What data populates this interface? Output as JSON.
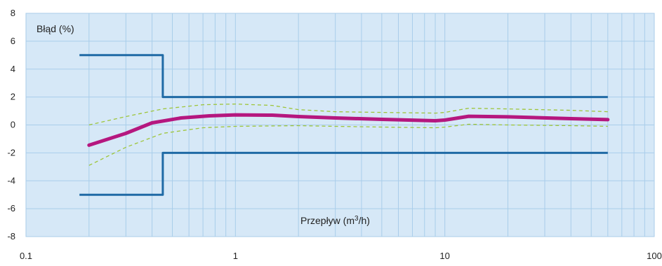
{
  "chart_data": {
    "type": "line",
    "x_scale": "log",
    "y_scale": "linear",
    "xlim": [
      0.1,
      100
    ],
    "ylim": [
      -8,
      8
    ],
    "x_ticks": [
      {
        "value": 0.1,
        "label": "0.1"
      },
      {
        "value": 1,
        "label": "1"
      },
      {
        "value": 10,
        "label": "10"
      },
      {
        "value": 100,
        "label": "100"
      }
    ],
    "y_ticks": [
      {
        "value": 8,
        "label": "8"
      },
      {
        "value": 6,
        "label": "6"
      },
      {
        "value": 4,
        "label": "4"
      },
      {
        "value": 2,
        "label": "2"
      },
      {
        "value": 0,
        "label": "0"
      },
      {
        "value": -2,
        "label": "-2"
      },
      {
        "value": -4,
        "label": "-4"
      },
      {
        "value": -6,
        "label": "-6"
      },
      {
        "value": -8,
        "label": "-8"
      }
    ],
    "ylabel": "Błąd (%)",
    "xlabel_base": "Przepływ (m",
    "xlabel_sup": "3",
    "xlabel_tail": "/h)",
    "grid": true,
    "colors": {
      "plot_bg": "#d6e8f7",
      "grid": "#a9cdea",
      "limits": "#1f6aa5",
      "curve": "#b5177f",
      "band": "#9ec53a"
    },
    "series": [
      {
        "role": "upper-limit",
        "style": "solid",
        "points": [
          [
            0.18,
            5
          ],
          [
            0.45,
            5
          ],
          [
            0.45,
            2
          ],
          [
            60,
            2
          ]
        ]
      },
      {
        "role": "lower-limit",
        "style": "solid",
        "points": [
          [
            0.18,
            -5
          ],
          [
            0.45,
            -5
          ],
          [
            0.45,
            -2
          ],
          [
            60,
            -2
          ]
        ]
      },
      {
        "role": "error-curve",
        "style": "solid",
        "points": [
          [
            0.2,
            -1.45
          ],
          [
            0.3,
            -0.6
          ],
          [
            0.4,
            0.15
          ],
          [
            0.55,
            0.5
          ],
          [
            0.75,
            0.65
          ],
          [
            1,
            0.72
          ],
          [
            1.5,
            0.7
          ],
          [
            2,
            0.6
          ],
          [
            3,
            0.5
          ],
          [
            5,
            0.4
          ],
          [
            9,
            0.3
          ],
          [
            10,
            0.35
          ],
          [
            13,
            0.62
          ],
          [
            20,
            0.58
          ],
          [
            40,
            0.45
          ],
          [
            60,
            0.38
          ]
        ]
      },
      {
        "role": "upper-band",
        "style": "dashed",
        "points": [
          [
            0.2,
            0.0
          ],
          [
            0.3,
            0.6
          ],
          [
            0.45,
            1.15
          ],
          [
            0.7,
            1.45
          ],
          [
            1,
            1.5
          ],
          [
            1.5,
            1.4
          ],
          [
            2,
            1.1
          ],
          [
            3,
            0.95
          ],
          [
            5,
            0.9
          ],
          [
            9,
            0.85
          ],
          [
            10,
            0.9
          ],
          [
            13,
            1.2
          ],
          [
            20,
            1.15
          ],
          [
            40,
            1.05
          ],
          [
            60,
            0.95
          ]
        ]
      },
      {
        "role": "lower-band",
        "style": "dashed",
        "points": [
          [
            0.2,
            -2.9
          ],
          [
            0.3,
            -1.6
          ],
          [
            0.45,
            -0.6
          ],
          [
            0.7,
            -0.2
          ],
          [
            1,
            -0.1
          ],
          [
            2,
            -0.05
          ],
          [
            3,
            -0.1
          ],
          [
            5,
            -0.15
          ],
          [
            9,
            -0.2
          ],
          [
            10,
            -0.15
          ],
          [
            13,
            0.05
          ],
          [
            20,
            0.0
          ],
          [
            40,
            -0.05
          ],
          [
            60,
            -0.1
          ]
        ]
      }
    ]
  }
}
